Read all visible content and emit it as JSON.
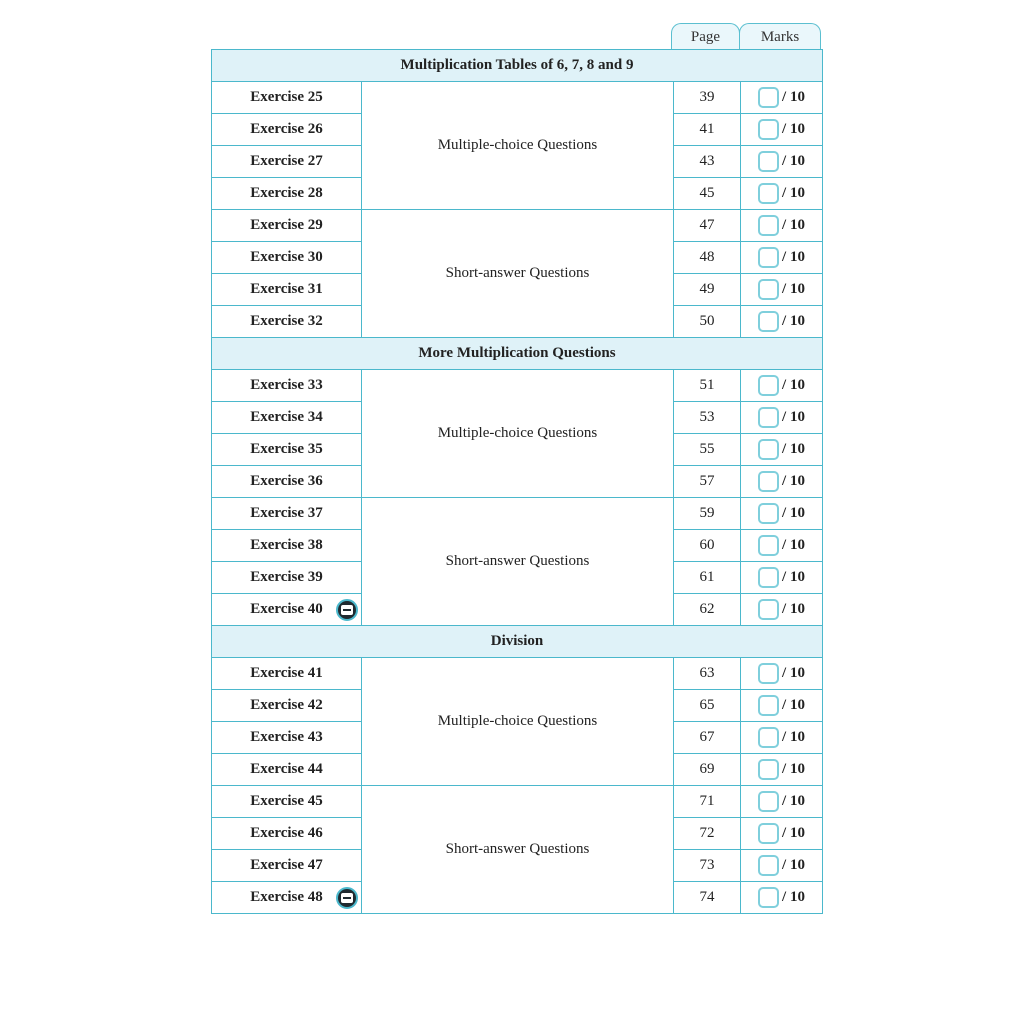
{
  "header": {
    "page_label": "Page",
    "marks_label": "Marks"
  },
  "sections": [
    {
      "title": "Multiplication Tables of 6, 7, 8 and 9",
      "groups": [
        {
          "label": "Multiple-choice Questions",
          "rows": [
            {
              "exercise": "Exercise 25",
              "page": "39",
              "marks": "/ 10"
            },
            {
              "exercise": "Exercise 26",
              "page": "41",
              "marks": "/ 10"
            },
            {
              "exercise": "Exercise 27",
              "page": "43",
              "marks": "/ 10"
            },
            {
              "exercise": "Exercise 28",
              "page": "45",
              "marks": "/ 10"
            }
          ]
        },
        {
          "label": "Short-answer Questions",
          "rows": [
            {
              "exercise": "Exercise 29",
              "page": "47",
              "marks": "/ 10"
            },
            {
              "exercise": "Exercise 30",
              "page": "48",
              "marks": "/ 10"
            },
            {
              "exercise": "Exercise 31",
              "page": "49",
              "marks": "/ 10"
            },
            {
              "exercise": "Exercise 32",
              "page": "50",
              "marks": "/ 10"
            }
          ]
        }
      ]
    },
    {
      "title": "More Multiplication Questions",
      "groups": [
        {
          "label": "Multiple-choice Questions",
          "rows": [
            {
              "exercise": "Exercise 33",
              "page": "51",
              "marks": "/ 10"
            },
            {
              "exercise": "Exercise 34",
              "page": "53",
              "marks": "/ 10"
            },
            {
              "exercise": "Exercise 35",
              "page": "55",
              "marks": "/ 10"
            },
            {
              "exercise": "Exercise 36",
              "page": "57",
              "marks": "/ 10"
            }
          ]
        },
        {
          "label": "Short-answer Questions",
          "rows": [
            {
              "exercise": "Exercise 37",
              "page": "59",
              "marks": "/ 10"
            },
            {
              "exercise": "Exercise 38",
              "page": "60",
              "marks": "/ 10"
            },
            {
              "exercise": "Exercise 39",
              "page": "61",
              "marks": "/ 10"
            },
            {
              "exercise": "Exercise 40",
              "page": "62",
              "marks": "/ 10",
              "icon": "calculator-icon"
            }
          ]
        }
      ]
    },
    {
      "title": "Division",
      "groups": [
        {
          "label": "Multiple-choice Questions",
          "rows": [
            {
              "exercise": "Exercise 41",
              "page": "63",
              "marks": "/ 10"
            },
            {
              "exercise": "Exercise 42",
              "page": "65",
              "marks": "/ 10"
            },
            {
              "exercise": "Exercise 43",
              "page": "67",
              "marks": "/ 10"
            },
            {
              "exercise": "Exercise 44",
              "page": "69",
              "marks": "/ 10"
            }
          ]
        },
        {
          "label": "Short-answer Questions",
          "rows": [
            {
              "exercise": "Exercise 45",
              "page": "71",
              "marks": "/ 10"
            },
            {
              "exercise": "Exercise 46",
              "page": "72",
              "marks": "/ 10"
            },
            {
              "exercise": "Exercise 47",
              "page": "73",
              "marks": "/ 10"
            },
            {
              "exercise": "Exercise 48",
              "page": "74",
              "marks": "/ 10",
              "icon": "calculator-icon"
            }
          ]
        }
      ]
    }
  ],
  "colors": {
    "border": "#4bb8cc",
    "section_bg": "#dff2f8"
  }
}
